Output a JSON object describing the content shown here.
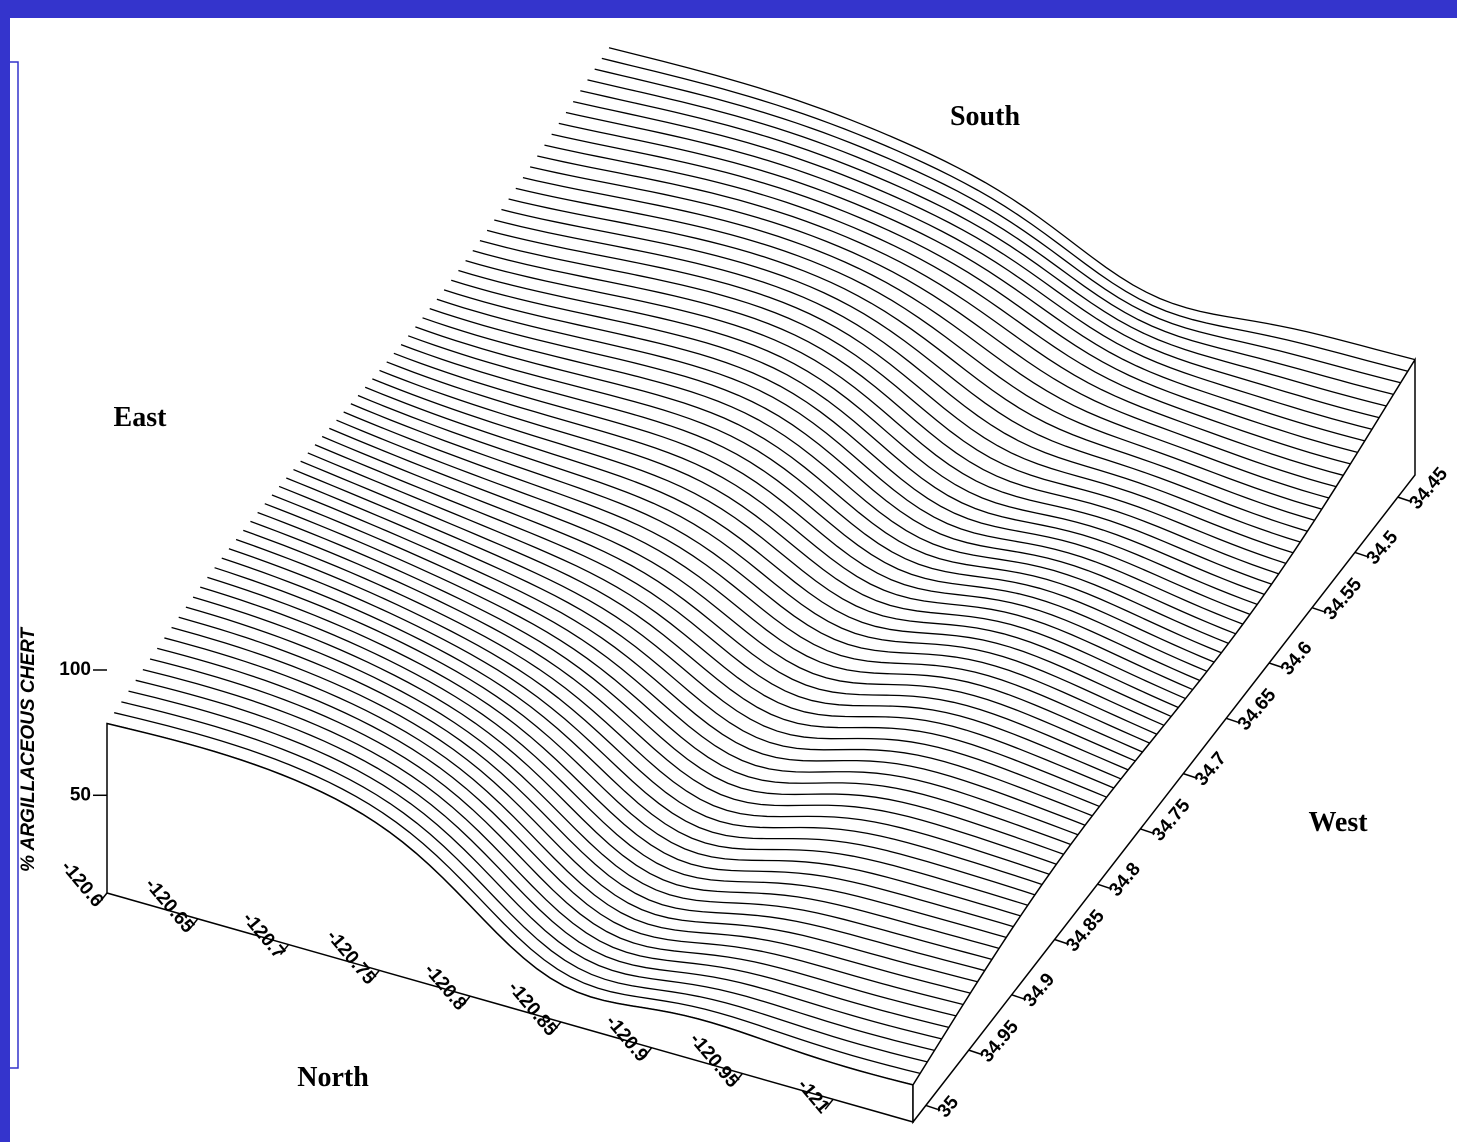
{
  "chart_data": {
    "type": "surface3d",
    "z_label": "% ARGILLACEOUS CHERT",
    "direction_labels": {
      "east": "East",
      "south": "South",
      "west": "West",
      "north": "North"
    },
    "xlim": [
      -120.6,
      -121.044
    ],
    "xticks": [
      -120.6,
      -120.65,
      -120.7,
      -120.75,
      -120.8,
      -120.85,
      -120.9,
      -120.95,
      -121
    ],
    "ylim": [
      35.015,
      34.43
    ],
    "yticks": [
      35,
      34.95,
      34.9,
      34.85,
      34.8,
      34.75,
      34.7,
      34.65,
      34.6,
      34.55,
      34.5,
      34.45
    ],
    "zlim": [
      11,
      100
    ],
    "zticks": [
      50,
      100
    ]
  }
}
